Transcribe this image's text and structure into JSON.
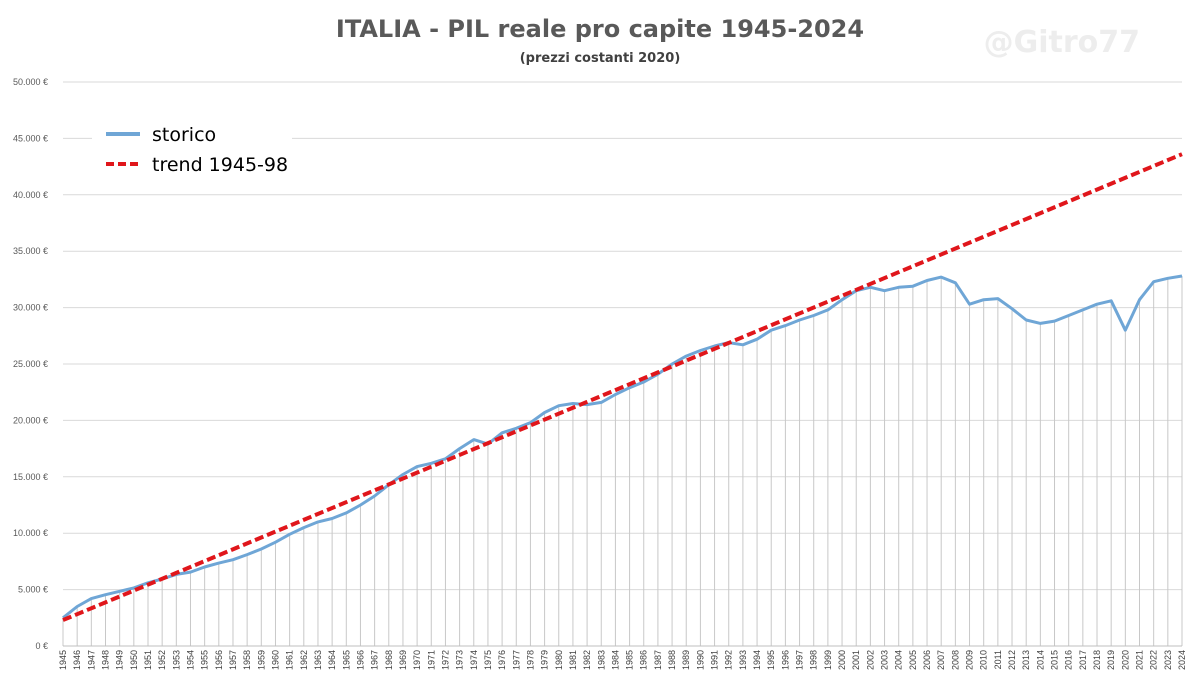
{
  "chart_data": {
    "type": "line",
    "title": "ITALIA - PIL reale pro capite 1945-2024",
    "subtitle": "(prezzi costanti 2020)",
    "watermark": "@Gitro77",
    "xlabel": "",
    "ylabel": "",
    "ylim": [
      0,
      50000
    ],
    "yticks": [
      "0 €",
      "5.000 €",
      "10.000 €",
      "15.000 €",
      "20.000 €",
      "25.000 €",
      "30.000 €",
      "35.000 €",
      "40.000 €",
      "45.000 €",
      "50.000 €"
    ],
    "grid": true,
    "legend_position": "top-left",
    "categories": [
      "1945",
      "1946",
      "1947",
      "1948",
      "1949",
      "1950",
      "1951",
      "1952",
      "1953",
      "1954",
      "1955",
      "1956",
      "1957",
      "1958",
      "1959",
      "1960",
      "1961",
      "1962",
      "1963",
      "1964",
      "1965",
      "1966",
      "1967",
      "1968",
      "1969",
      "1970",
      "1971",
      "1972",
      "1973",
      "1974",
      "1975",
      "1976",
      "1977",
      "1978",
      "1979",
      "1980",
      "1981",
      "1982",
      "1983",
      "1984",
      "1985",
      "1986",
      "1987",
      "1988",
      "1989",
      "1990",
      "1991",
      "1992",
      "1993",
      "1994",
      "1995",
      "1996",
      "1997",
      "1998",
      "1999",
      "2000",
      "2001",
      "2002",
      "2003",
      "2004",
      "2005",
      "2006",
      "2007",
      "2008",
      "2009",
      "2010",
      "2011",
      "2012",
      "2013",
      "2014",
      "2015",
      "2016",
      "2017",
      "2018",
      "2019",
      "2020",
      "2021",
      "2022",
      "2023",
      "2024"
    ],
    "series": [
      {
        "name": "storico",
        "color": "#6fa6d6",
        "style": "solid",
        "values": [
          2500,
          3500,
          4200,
          4550,
          4850,
          5150,
          5600,
          5950,
          6350,
          6550,
          7000,
          7350,
          7650,
          8100,
          8600,
          9200,
          9900,
          10500,
          11000,
          11300,
          11800,
          12500,
          13300,
          14300,
          15200,
          15900,
          16200,
          16600,
          17500,
          18300,
          17900,
          18900,
          19300,
          19800,
          20700,
          21300,
          21500,
          21400,
          21600,
          22300,
          22900,
          23400,
          24100,
          25000,
          25700,
          26200,
          26600,
          26900,
          26700,
          27200,
          28000,
          28400,
          28900,
          29300,
          29800,
          30700,
          31500,
          31800,
          31500,
          31800,
          31900,
          32400,
          32700,
          32200,
          30300,
          30700,
          30800,
          29900,
          28900,
          28600,
          28800,
          29300,
          29800,
          30300,
          30600,
          28000,
          30700,
          32300,
          32600,
          32800
        ]
      },
      {
        "name": "trend 1945-98",
        "color": "#e0161b",
        "style": "dashed",
        "start": 2300,
        "end": 43600
      }
    ]
  }
}
